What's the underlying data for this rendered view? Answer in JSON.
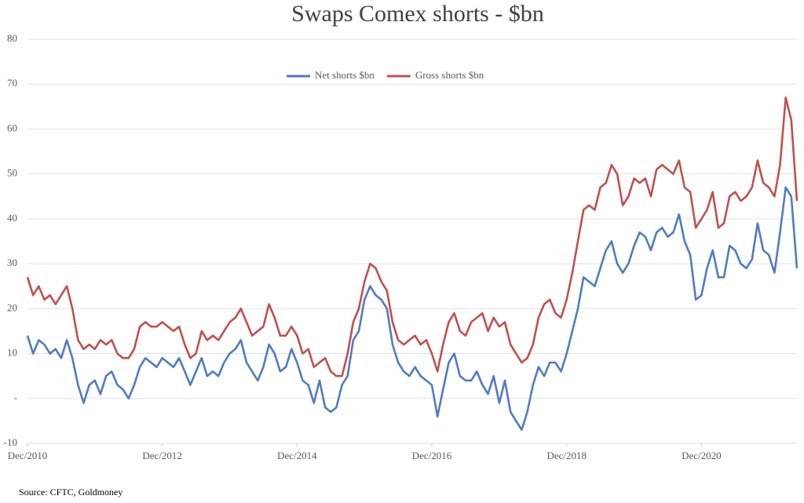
{
  "chart_data": {
    "type": "line",
    "title": "Swaps Comex shorts - $bn",
    "source": "Source: CFTC, Goldmoney",
    "legend": "top",
    "grid": true,
    "x": [
      "2010-12",
      "2011-01",
      "2011-02",
      "2011-03",
      "2011-04",
      "2011-05",
      "2011-06",
      "2011-07",
      "2011-08",
      "2011-09",
      "2011-10",
      "2011-11",
      "2011-12",
      "2012-01",
      "2012-02",
      "2012-03",
      "2012-04",
      "2012-05",
      "2012-06",
      "2012-07",
      "2012-08",
      "2012-09",
      "2012-10",
      "2012-11",
      "2012-12",
      "2013-01",
      "2013-02",
      "2013-03",
      "2013-04",
      "2013-05",
      "2013-06",
      "2013-07",
      "2013-08",
      "2013-09",
      "2013-10",
      "2013-11",
      "2013-12",
      "2014-01",
      "2014-02",
      "2014-03",
      "2014-04",
      "2014-05",
      "2014-06",
      "2014-07",
      "2014-08",
      "2014-09",
      "2014-10",
      "2014-11",
      "2014-12",
      "2015-01",
      "2015-02",
      "2015-03",
      "2015-04",
      "2015-05",
      "2015-06",
      "2015-07",
      "2015-08",
      "2015-09",
      "2015-10",
      "2015-11",
      "2015-12",
      "2016-01",
      "2016-02",
      "2016-03",
      "2016-04",
      "2016-05",
      "2016-06",
      "2016-07",
      "2016-08",
      "2016-09",
      "2016-10",
      "2016-11",
      "2016-12",
      "2017-01",
      "2017-02",
      "2017-03",
      "2017-04",
      "2017-05",
      "2017-06",
      "2017-07",
      "2017-08",
      "2017-09",
      "2017-10",
      "2017-11",
      "2017-12",
      "2018-01",
      "2018-02",
      "2018-03",
      "2018-04",
      "2018-05",
      "2018-06",
      "2018-07",
      "2018-08",
      "2018-09",
      "2018-10",
      "2018-11",
      "2018-12",
      "2019-01",
      "2019-02",
      "2019-03",
      "2019-04",
      "2019-05",
      "2019-06",
      "2019-07",
      "2019-08",
      "2019-09",
      "2019-10",
      "2019-11",
      "2019-12",
      "2020-01",
      "2020-02",
      "2020-03",
      "2020-04",
      "2020-05",
      "2020-06",
      "2020-07",
      "2020-08",
      "2020-09",
      "2020-10",
      "2020-11",
      "2020-12",
      "2021-01",
      "2021-02",
      "2021-03",
      "2021-04",
      "2021-05",
      "2021-06",
      "2021-07",
      "2021-08",
      "2021-09",
      "2021-10",
      "2021-11",
      "2021-12",
      "2022-01",
      "2022-02",
      "2022-03",
      "2022-04",
      "2022-05"
    ],
    "series": [
      {
        "name": "Net shorts $bn",
        "color": "#4f7cc0",
        "values": [
          14,
          10,
          13,
          12,
          10,
          11,
          9,
          13,
          9,
          3,
          -1,
          3,
          4,
          1,
          5,
          6,
          3,
          2,
          0,
          3,
          7,
          9,
          8,
          7,
          9,
          8,
          7,
          9,
          6,
          3,
          6,
          9,
          5,
          6,
          5,
          8,
          10,
          11,
          13,
          8,
          6,
          4,
          7,
          12,
          10,
          6,
          7,
          11,
          8,
          4,
          3,
          -1,
          4,
          -2,
          -3,
          -2,
          3,
          5,
          13,
          15,
          22,
          25,
          23,
          22,
          20,
          12,
          8,
          6,
          5,
          7,
          5,
          4,
          3,
          -4,
          2,
          8,
          10,
          5,
          4,
          4,
          6,
          3,
          1,
          5,
          -1,
          4,
          -3,
          -5,
          -7,
          -3,
          3,
          7,
          5,
          8,
          8,
          6,
          10,
          15,
          20,
          27,
          26,
          25,
          29,
          33,
          35,
          30,
          28,
          30,
          34,
          37,
          36,
          33,
          37,
          38,
          36,
          37,
          41,
          35,
          32,
          22,
          23,
          29,
          33,
          27,
          27,
          34,
          33,
          30,
          29,
          31,
          39,
          33,
          32,
          28,
          37,
          47,
          45,
          29
        ]
      },
      {
        "name": "Gross shorts $bn",
        "color": "#c0504d",
        "values": [
          27,
          23,
          25,
          22,
          23,
          21,
          23,
          25,
          20,
          13,
          11,
          12,
          11,
          13,
          12,
          13,
          10,
          9,
          9,
          11,
          16,
          17,
          16,
          16,
          17,
          16,
          15,
          16,
          12,
          9,
          10,
          15,
          13,
          14,
          13,
          15,
          17,
          18,
          20,
          17,
          14,
          15,
          16,
          21,
          18,
          14,
          14,
          16,
          14,
          10,
          11,
          7,
          8,
          9,
          6,
          5,
          5,
          10,
          17,
          20,
          26,
          30,
          29,
          26,
          24,
          17,
          13,
          12,
          13,
          14,
          12,
          13,
          10,
          6,
          12,
          17,
          19,
          15,
          14,
          17,
          18,
          19,
          15,
          18,
          16,
          17,
          12,
          10,
          8,
          9,
          12,
          18,
          21,
          22,
          19,
          18,
          22,
          28,
          35,
          42,
          43,
          42,
          47,
          48,
          52,
          50,
          43,
          45,
          49,
          48,
          49,
          45,
          51,
          52,
          51,
          50,
          53,
          47,
          46,
          38,
          40,
          42,
          46,
          38,
          39,
          45,
          46,
          44,
          45,
          47,
          53,
          48,
          47,
          45,
          52,
          67,
          62,
          44
        ]
      }
    ],
    "xlim": [
      "2010-12",
      "2022-05"
    ],
    "xticks": [
      {
        "value": "2010-12",
        "label": "Dec/2010"
      },
      {
        "value": "2012-12",
        "label": "Dec/2012"
      },
      {
        "value": "2014-12",
        "label": "Dec/2014"
      },
      {
        "value": "2016-12",
        "label": "Dec/2016"
      },
      {
        "value": "2018-12",
        "label": "Dec/2018"
      },
      {
        "value": "2020-12",
        "label": "Dec/2020"
      }
    ],
    "ylim": [
      -10,
      80
    ],
    "yticks": [
      -10,
      {
        "value": 0,
        "label": "-"
      },
      10,
      20,
      30,
      40,
      50,
      60,
      70,
      80
    ]
  }
}
